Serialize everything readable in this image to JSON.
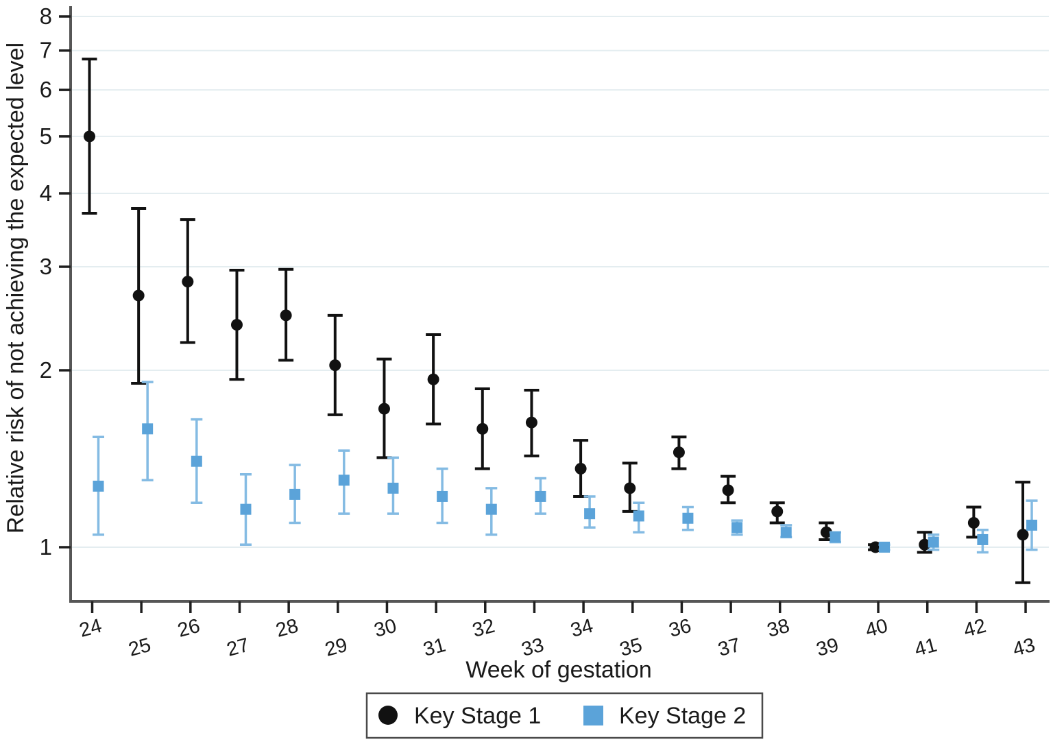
{
  "chart_data": {
    "type": "scatter",
    "title": "",
    "xlabel": "Week of gestation",
    "ylabel": "Relative risk of not achieving the expected level",
    "y_scale": "log",
    "ylim": [
      0.81,
      8.3
    ],
    "grid": "horizontal-only",
    "legend_position": "bottom",
    "y_ticks": [
      1,
      2,
      3,
      4,
      5,
      6,
      7,
      8
    ],
    "x_ticks_row1": [
      24,
      26,
      28,
      30,
      32,
      34,
      36,
      38,
      40,
      42
    ],
    "x_ticks_row2": [
      25,
      27,
      29,
      31,
      33,
      35,
      37,
      39,
      41,
      43
    ],
    "weeks": [
      24,
      25,
      26,
      27,
      28,
      29,
      30,
      31,
      32,
      33,
      34,
      35,
      36,
      37,
      38,
      39,
      40,
      41,
      42,
      43
    ],
    "series": [
      {
        "name": "Key Stage 1",
        "marker": "circle",
        "color": "#111111",
        "values": [
          5.0,
          2.68,
          2.83,
          2.39,
          2.48,
          2.04,
          1.72,
          1.93,
          1.59,
          1.63,
          1.36,
          1.26,
          1.45,
          1.25,
          1.15,
          1.06,
          1.0,
          1.01,
          1.1,
          1.05
        ],
        "ci_low": [
          3.7,
          1.9,
          2.23,
          1.93,
          2.08,
          1.68,
          1.42,
          1.62,
          1.36,
          1.43,
          1.22,
          1.15,
          1.36,
          1.19,
          1.1,
          1.03,
          0.99,
          0.98,
          1.04,
          0.87
        ],
        "ci_high": [
          6.77,
          3.77,
          3.61,
          2.96,
          2.97,
          2.48,
          2.09,
          2.3,
          1.86,
          1.85,
          1.52,
          1.39,
          1.54,
          1.32,
          1.19,
          1.1,
          1.01,
          1.06,
          1.17,
          1.29
        ]
      },
      {
        "name": "Key Stage 2",
        "marker": "square",
        "color": "#5ba3d9",
        "line_color": "#84bbe3",
        "values": [
          1.27,
          1.59,
          1.4,
          1.16,
          1.23,
          1.3,
          1.26,
          1.22,
          1.16,
          1.22,
          1.14,
          1.13,
          1.12,
          1.08,
          1.06,
          1.04,
          1.0,
          1.02,
          1.03,
          1.09
        ],
        "ci_low": [
          1.05,
          1.3,
          1.19,
          1.01,
          1.1,
          1.14,
          1.14,
          1.1,
          1.05,
          1.14,
          1.08,
          1.06,
          1.07,
          1.05,
          1.04,
          1.02,
          0.99,
          0.99,
          0.98,
          0.99
        ],
        "ci_high": [
          1.54,
          1.91,
          1.65,
          1.33,
          1.38,
          1.46,
          1.42,
          1.36,
          1.26,
          1.31,
          1.22,
          1.19,
          1.17,
          1.11,
          1.09,
          1.06,
          1.01,
          1.05,
          1.07,
          1.2
        ]
      }
    ],
    "colors": {
      "axis": "#565656",
      "tick": "#1f1f1f",
      "grid": "#e4edf0",
      "label": "#1a1a1a",
      "legend_border": "#4a4a4a"
    }
  }
}
